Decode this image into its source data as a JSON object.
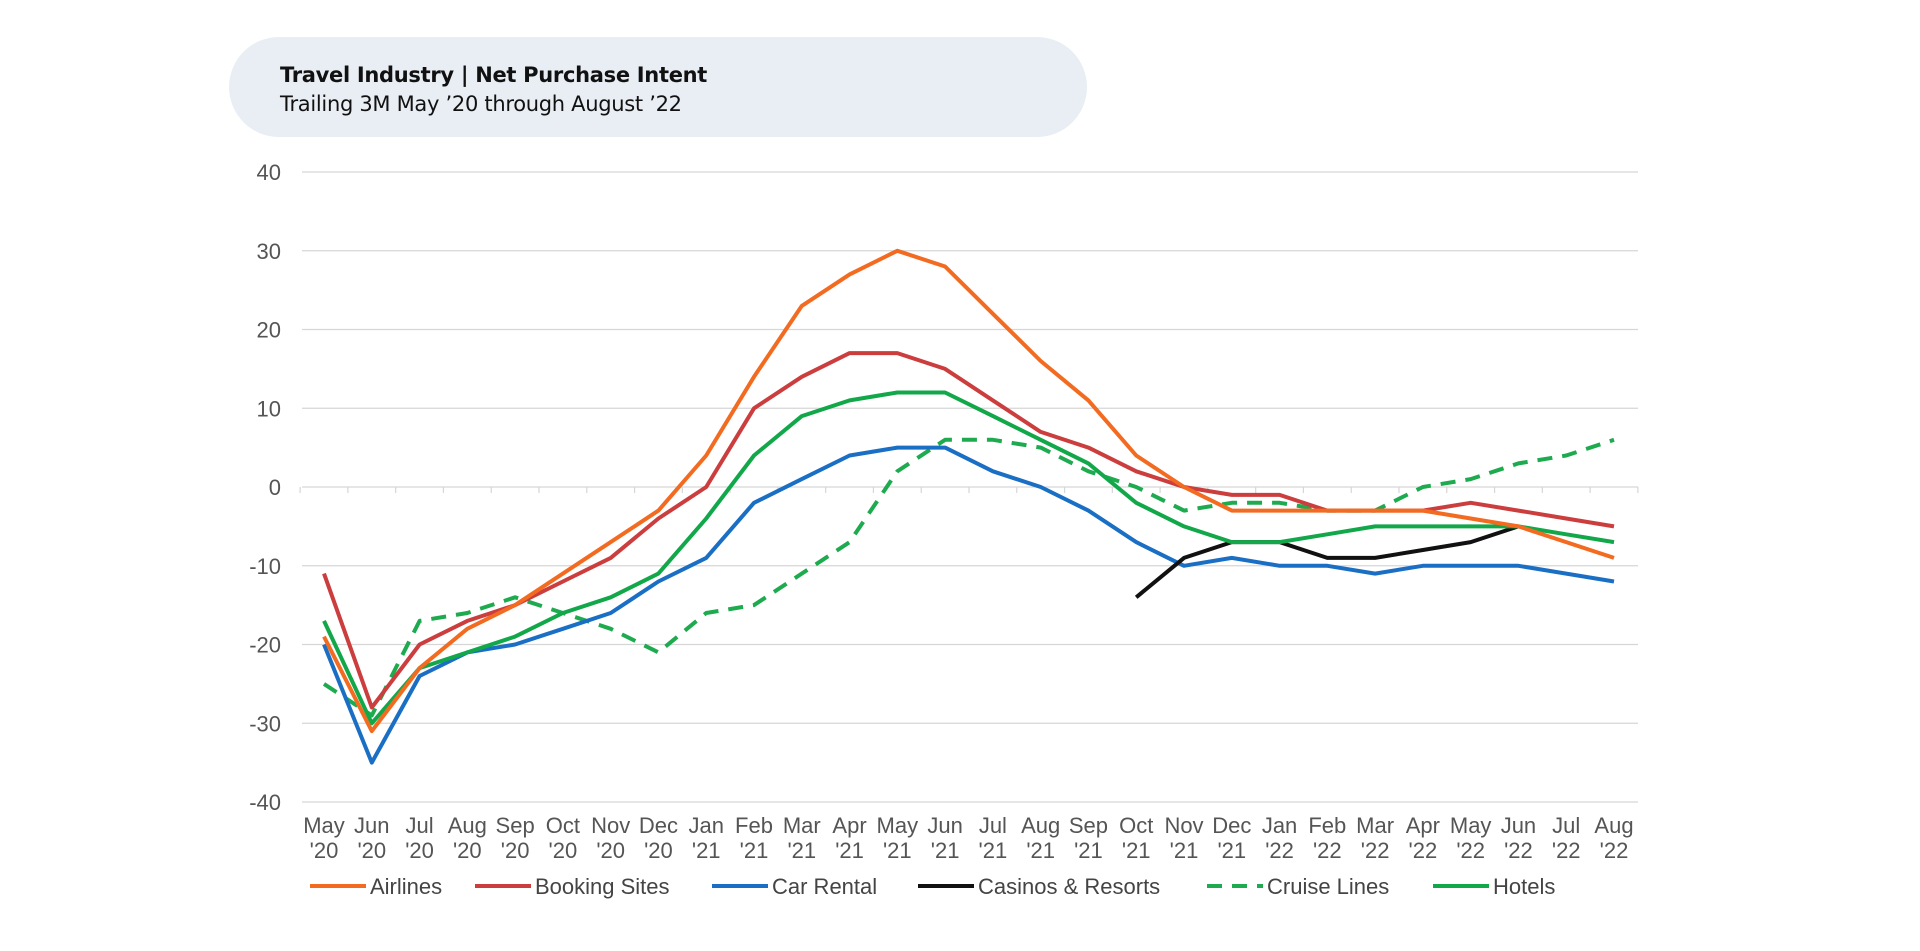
{
  "header": {
    "title": "Travel Industry | Net Purchase Intent",
    "subtitle": "Trailing 3M May ’20 through August ’22"
  },
  "chart_data": {
    "type": "line",
    "title": "Travel Industry | Net Purchase Intent",
    "subtitle": "Trailing 3M May ’20 through August ’22",
    "xlabel": "",
    "ylabel": "",
    "ylim": [
      -40,
      40
    ],
    "yticks": [
      40,
      30,
      20,
      10,
      0,
      -10,
      -20,
      -30,
      -40
    ],
    "grid": true,
    "legend_position": "bottom",
    "categories": [
      [
        "May",
        "'20"
      ],
      [
        "Jun",
        "'20"
      ],
      [
        "Jul",
        "'20"
      ],
      [
        "Aug",
        "'20"
      ],
      [
        "Sep",
        "'20"
      ],
      [
        "Oct",
        "'20"
      ],
      [
        "Nov",
        "'20"
      ],
      [
        "Dec",
        "'20"
      ],
      [
        "Jan",
        "'21"
      ],
      [
        "Feb",
        "'21"
      ],
      [
        "Mar",
        "'21"
      ],
      [
        "Apr",
        "'21"
      ],
      [
        "May",
        "'21"
      ],
      [
        "Jun",
        "'21"
      ],
      [
        "Jul",
        "'21"
      ],
      [
        "Aug",
        "'21"
      ],
      [
        "Sep",
        "'21"
      ],
      [
        "Oct",
        "'21"
      ],
      [
        "Nov",
        "'21"
      ],
      [
        "Dec",
        "'21"
      ],
      [
        "Jan",
        "'22"
      ],
      [
        "Feb",
        "'22"
      ],
      [
        "Mar",
        "'22"
      ],
      [
        "Apr",
        "'22"
      ],
      [
        "May",
        "'22"
      ],
      [
        "Jun",
        "'22"
      ],
      [
        "Jul",
        "'22"
      ],
      [
        "Aug",
        "'22"
      ]
    ],
    "series": [
      {
        "name": "Airlines",
        "color": "#f26b21",
        "dashed": false,
        "values": [
          -19,
          -31,
          -23,
          -18,
          -15,
          -11,
          -7,
          -3,
          4,
          14,
          23,
          27,
          30,
          28,
          22,
          16,
          11,
          4,
          0,
          -3,
          -3,
          -3,
          -3,
          -3,
          -4,
          -5,
          -7,
          -9
        ]
      },
      {
        "name": "Booking Sites",
        "color": "#cc3d3d",
        "dashed": false,
        "values": [
          -11,
          -28,
          -20,
          -17,
          -15,
          -12,
          -9,
          -4,
          0,
          10,
          14,
          17,
          17,
          15,
          11,
          7,
          5,
          2,
          0,
          -1,
          -1,
          -3,
          -3,
          -3,
          -2,
          -3,
          -4,
          -5
        ]
      },
      {
        "name": "Car Rental",
        "color": "#1a6fc4",
        "dashed": false,
        "values": [
          -20,
          -35,
          -24,
          -21,
          -20,
          -18,
          -16,
          -12,
          -9,
          -2,
          1,
          4,
          5,
          5,
          2,
          0,
          -3,
          -7,
          -10,
          -9,
          -10,
          -10,
          -11,
          -10,
          -10,
          -10,
          -11,
          -12
        ]
      },
      {
        "name": "Casinos & Resorts",
        "color": "#111111",
        "dashed": false,
        "values": [
          null,
          null,
          null,
          null,
          null,
          null,
          null,
          null,
          null,
          null,
          null,
          null,
          null,
          null,
          null,
          null,
          null,
          -14,
          -9,
          -7,
          -7,
          -9,
          -9,
          -8,
          -7,
          -5,
          null,
          null
        ]
      },
      {
        "name": "Cruise Lines",
        "color": "#1eaa4e",
        "dashed": true,
        "values": [
          -25,
          -29,
          -17,
          -16,
          -14,
          -16,
          -18,
          -21,
          -16,
          -15,
          -11,
          -7,
          2,
          6,
          6,
          5,
          2,
          0,
          -3,
          -2,
          -2,
          -3,
          -3,
          0,
          1,
          3,
          4,
          6
        ]
      },
      {
        "name": "Hotels",
        "color": "#12a84a",
        "dashed": false,
        "values": [
          -17,
          -30,
          -23,
          -21,
          -19,
          -16,
          -14,
          -11,
          -4,
          4,
          9,
          11,
          12,
          12,
          9,
          6,
          3,
          -2,
          -5,
          -7,
          -7,
          -6,
          -5,
          -5,
          -5,
          -5,
          -6,
          -7
        ]
      }
    ]
  }
}
